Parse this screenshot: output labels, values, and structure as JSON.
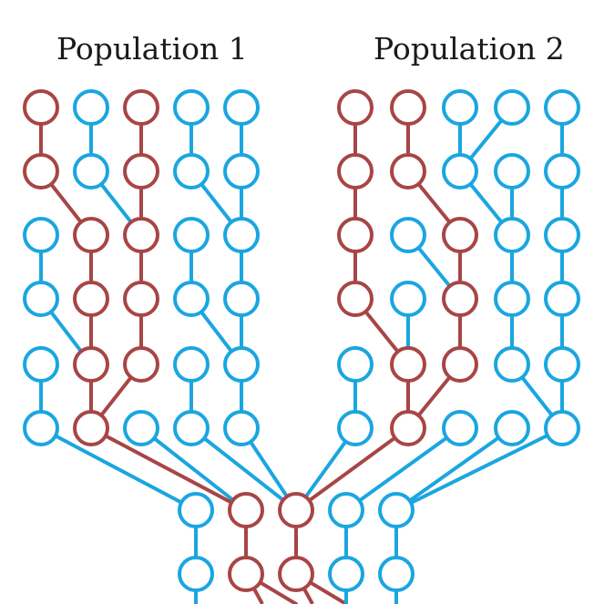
{
  "titles": {
    "left": "Population 1",
    "right": "Population 2"
  },
  "colors": {
    "lineage_traced": "#a84545",
    "lineage_other": "#1aa6e0",
    "background": "#ffffff"
  },
  "generations": 9,
  "edges": [
    {
      "from": "L1-1",
      "to": "L2-1",
      "type": "traced"
    },
    {
      "from": "L1-2",
      "to": "L2-2",
      "type": "other"
    },
    {
      "from": "L1-3",
      "to": "L2-3",
      "type": "traced"
    },
    {
      "from": "L1-4",
      "to": "L2-4",
      "type": "other"
    },
    {
      "from": "L1-5",
      "to": "L2-5",
      "type": "other"
    },
    {
      "from": "L2-1",
      "to": "L3-2",
      "type": "traced"
    },
    {
      "from": "L2-2",
      "to": "L3-3",
      "type": "other"
    },
    {
      "from": "L2-3",
      "to": "L3-3",
      "type": "traced"
    },
    {
      "from": "L2-4",
      "to": "L3-5",
      "type": "other"
    },
    {
      "from": "L2-5",
      "to": "L3-5",
      "type": "other"
    },
    {
      "from": "L3-1",
      "to": "L4-1",
      "type": "other"
    },
    {
      "from": "L3-2",
      "to": "L4-2",
      "type": "traced"
    },
    {
      "from": "L3-3",
      "to": "L4-3",
      "type": "traced"
    },
    {
      "from": "L3-4",
      "to": "L4-4",
      "type": "other"
    },
    {
      "from": "L3-5",
      "to": "L4-5",
      "type": "other"
    },
    {
      "from": "L4-1",
      "to": "L5-2",
      "type": "other"
    },
    {
      "from": "L4-2",
      "to": "L5-2",
      "type": "traced"
    },
    {
      "from": "L4-3",
      "to": "L5-3",
      "type": "traced"
    },
    {
      "from": "L4-4",
      "to": "L5-5",
      "type": "other"
    },
    {
      "from": "L4-5",
      "to": "L5-5",
      "type": "other"
    },
    {
      "from": "L5-1",
      "to": "L6-1",
      "type": "other"
    },
    {
      "from": "L5-2",
      "to": "L6-2",
      "type": "traced"
    },
    {
      "from": "L5-3",
      "to": "L6-2",
      "type": "traced"
    },
    {
      "from": "L5-4",
      "to": "L6-4",
      "type": "other"
    },
    {
      "from": "L5-5",
      "to": "L6-5",
      "type": "other"
    },
    {
      "from": "L6-1",
      "to": "M7-1",
      "type": "other"
    },
    {
      "from": "L6-2",
      "to": "M7-2",
      "type": "traced"
    },
    {
      "from": "L6-3",
      "to": "M7-2",
      "type": "other"
    },
    {
      "from": "L6-4",
      "to": "M7-3",
      "type": "other"
    },
    {
      "from": "L6-5",
      "to": "M7-3",
      "type": "other"
    },
    {
      "from": "R1-1",
      "to": "R2-1",
      "type": "traced"
    },
    {
      "from": "R1-2",
      "to": "R2-2",
      "type": "traced"
    },
    {
      "from": "R1-3",
      "to": "R2-3",
      "type": "other"
    },
    {
      "from": "R1-4",
      "to": "R2-3",
      "type": "other"
    },
    {
      "from": "R1-5",
      "to": "R2-5",
      "type": "other"
    },
    {
      "from": "R2-1",
      "to": "R3-1",
      "type": "traced"
    },
    {
      "from": "R2-2",
      "to": "R3-3",
      "type": "traced"
    },
    {
      "from": "R2-3",
      "to": "R3-4",
      "type": "other"
    },
    {
      "from": "R2-4",
      "to": "R3-4",
      "type": "other"
    },
    {
      "from": "R2-5",
      "to": "R3-5",
      "type": "other"
    },
    {
      "from": "R3-1",
      "to": "R4-1",
      "type": "traced"
    },
    {
      "from": "R3-2",
      "to": "R4-3",
      "type": "other"
    },
    {
      "from": "R3-3",
      "to": "R4-3",
      "type": "traced"
    },
    {
      "from": "R3-4",
      "to": "R4-4",
      "type": "other"
    },
    {
      "from": "R3-5",
      "to": "R4-5",
      "type": "other"
    },
    {
      "from": "R4-1",
      "to": "R5-2",
      "type": "traced"
    },
    {
      "from": "R4-2",
      "to": "R5-2",
      "type": "other"
    },
    {
      "from": "R4-3",
      "to": "R5-3",
      "type": "traced"
    },
    {
      "from": "R4-4",
      "to": "R5-4",
      "type": "other"
    },
    {
      "from": "R4-5",
      "to": "R5-5",
      "type": "other"
    },
    {
      "from": "R5-1",
      "to": "R6-1",
      "type": "other"
    },
    {
      "from": "R5-2",
      "to": "R6-2",
      "type": "traced"
    },
    {
      "from": "R5-3",
      "to": "R6-2",
      "type": "traced"
    },
    {
      "from": "R5-4",
      "to": "R6-5",
      "type": "other"
    },
    {
      "from": "R5-5",
      "to": "R6-5",
      "type": "other"
    },
    {
      "from": "R6-1",
      "to": "M7-3",
      "type": "other"
    },
    {
      "from": "R6-2",
      "to": "M7-3",
      "type": "traced"
    },
    {
      "from": "R6-3",
      "to": "M7-4",
      "type": "other"
    },
    {
      "from": "R6-4",
      "to": "M7-5",
      "type": "other"
    },
    {
      "from": "R6-5",
      "to": "M7-5",
      "type": "other"
    },
    {
      "from": "M7-1",
      "to": "M8-1",
      "type": "other"
    },
    {
      "from": "M7-2",
      "to": "M8-2",
      "type": "traced"
    },
    {
      "from": "M7-3",
      "to": "M8-3",
      "type": "traced"
    },
    {
      "from": "M7-4",
      "to": "M8-4",
      "type": "other"
    },
    {
      "from": "M7-5",
      "to": "M8-5",
      "type": "other"
    },
    {
      "from": "M8-1",
      "to": "M9-1",
      "type": "other"
    },
    {
      "from": "M8-2",
      "to": "M9-3",
      "type": "traced"
    },
    {
      "from": "M8-3",
      "to": "M9-4",
      "type": "traced"
    },
    {
      "from": "M8-4",
      "to": "M9-4",
      "type": "other"
    },
    {
      "from": "M8-5",
      "to": "M9-5",
      "type": "other"
    }
  ],
  "nodes": [
    {
      "id": "L1-1",
      "type": "traced"
    },
    {
      "id": "L1-2",
      "type": "other"
    },
    {
      "id": "L1-3",
      "type": "traced"
    },
    {
      "id": "L1-4",
      "type": "other"
    },
    {
      "id": "L1-5",
      "type": "other"
    },
    {
      "id": "L2-1",
      "type": "traced"
    },
    {
      "id": "L2-2",
      "type": "other"
    },
    {
      "id": "L2-3",
      "type": "traced"
    },
    {
      "id": "L2-4",
      "type": "other"
    },
    {
      "id": "L2-5",
      "type": "other"
    },
    {
      "id": "L3-1",
      "type": "other"
    },
    {
      "id": "L3-2",
      "type": "traced"
    },
    {
      "id": "L3-3",
      "type": "traced"
    },
    {
      "id": "L3-4",
      "type": "other"
    },
    {
      "id": "L3-5",
      "type": "other"
    },
    {
      "id": "L4-1",
      "type": "other"
    },
    {
      "id": "L4-2",
      "type": "traced"
    },
    {
      "id": "L4-3",
      "type": "traced"
    },
    {
      "id": "L4-4",
      "type": "other"
    },
    {
      "id": "L4-5",
      "type": "other"
    },
    {
      "id": "L5-1",
      "type": "other"
    },
    {
      "id": "L5-2",
      "type": "traced"
    },
    {
      "id": "L5-3",
      "type": "traced"
    },
    {
      "id": "L5-4",
      "type": "other"
    },
    {
      "id": "L5-5",
      "type": "other"
    },
    {
      "id": "L6-1",
      "type": "other"
    },
    {
      "id": "L6-2",
      "type": "traced"
    },
    {
      "id": "L6-3",
      "type": "other"
    },
    {
      "id": "L6-4",
      "type": "other"
    },
    {
      "id": "L6-5",
      "type": "other"
    },
    {
      "id": "R1-1",
      "type": "traced"
    },
    {
      "id": "R1-2",
      "type": "traced"
    },
    {
      "id": "R1-3",
      "type": "other"
    },
    {
      "id": "R1-4",
      "type": "other"
    },
    {
      "id": "R1-5",
      "type": "other"
    },
    {
      "id": "R2-1",
      "type": "traced"
    },
    {
      "id": "R2-2",
      "type": "traced"
    },
    {
      "id": "R2-3",
      "type": "other"
    },
    {
      "id": "R2-4",
      "type": "other"
    },
    {
      "id": "R2-5",
      "type": "other"
    },
    {
      "id": "R3-1",
      "type": "traced"
    },
    {
      "id": "R3-2",
      "type": "other"
    },
    {
      "id": "R3-3",
      "type": "traced"
    },
    {
      "id": "R3-4",
      "type": "other"
    },
    {
      "id": "R3-5",
      "type": "other"
    },
    {
      "id": "R4-1",
      "type": "traced"
    },
    {
      "id": "R4-2",
      "type": "other"
    },
    {
      "id": "R4-3",
      "type": "traced"
    },
    {
      "id": "R4-4",
      "type": "other"
    },
    {
      "id": "R4-5",
      "type": "other"
    },
    {
      "id": "R5-1",
      "type": "other"
    },
    {
      "id": "R5-2",
      "type": "traced"
    },
    {
      "id": "R5-3",
      "type": "traced"
    },
    {
      "id": "R5-4",
      "type": "other"
    },
    {
      "id": "R5-5",
      "type": "other"
    },
    {
      "id": "R6-1",
      "type": "other"
    },
    {
      "id": "R6-2",
      "type": "traced"
    },
    {
      "id": "R6-3",
      "type": "other"
    },
    {
      "id": "R6-4",
      "type": "other"
    },
    {
      "id": "R6-5",
      "type": "other"
    },
    {
      "id": "M7-1",
      "type": "other"
    },
    {
      "id": "M7-2",
      "type": "traced"
    },
    {
      "id": "M7-3",
      "type": "traced"
    },
    {
      "id": "M7-4",
      "type": "other"
    },
    {
      "id": "M7-5",
      "type": "other"
    },
    {
      "id": "M8-1",
      "type": "other"
    },
    {
      "id": "M8-2",
      "type": "traced"
    },
    {
      "id": "M8-3",
      "type": "traced"
    },
    {
      "id": "M8-4",
      "type": "other"
    },
    {
      "id": "M8-5",
      "type": "other"
    }
  ],
  "bottom_stubs": [
    {
      "id": "M9-1",
      "type": "other"
    },
    {
      "id": "M9-3",
      "type": "traced"
    },
    {
      "id": "M9-4",
      "type": "traced"
    },
    {
      "id": "M9-4b",
      "type": "other"
    },
    {
      "id": "M9-5",
      "type": "other"
    }
  ]
}
